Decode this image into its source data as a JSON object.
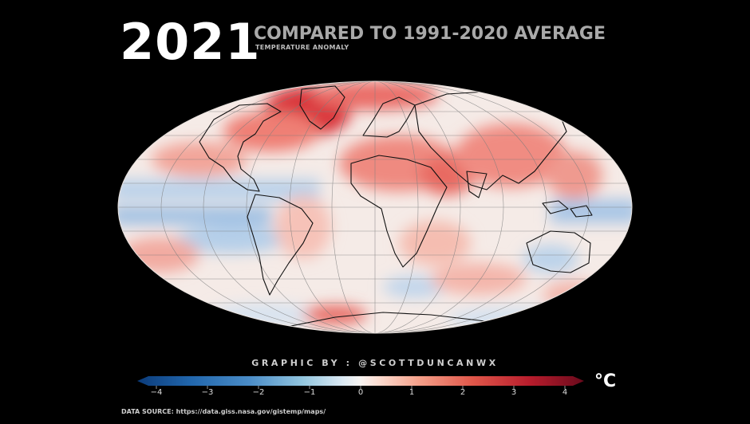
{
  "title": {
    "year": "2021",
    "headline": "COMPARED TO 1991-2020 AVERAGE",
    "subtitle": "TEMPERATURE ANOMALY"
  },
  "map": {
    "projection": "mollweide",
    "warm_color": "#e0443c",
    "cool_color": "#6d9fd2",
    "neutral_color": "#f4eeea",
    "outline_color": "#000000"
  },
  "legend": {
    "ticks": [
      "−4",
      "−3",
      "−2",
      "−1",
      "0",
      "1",
      "2",
      "3",
      "4"
    ],
    "tick_values": [
      -4,
      -3,
      -2,
      -1,
      0,
      1,
      2,
      3,
      4
    ],
    "range": [
      -4,
      4
    ],
    "unit": "°C",
    "colors": [
      "#08306b",
      "#2166ac",
      "#4393c3",
      "#92c5de",
      "#d1e5f0",
      "#f7f7f7",
      "#fddbc7",
      "#f4a582",
      "#d6604d",
      "#b2182b",
      "#67001f"
    ]
  },
  "credit": "GRAPHIC BY : @SCOTTDUNCANWX",
  "source": "DATA SOURCE: https://data.giss.nasa.gov/gistemp/maps/"
}
